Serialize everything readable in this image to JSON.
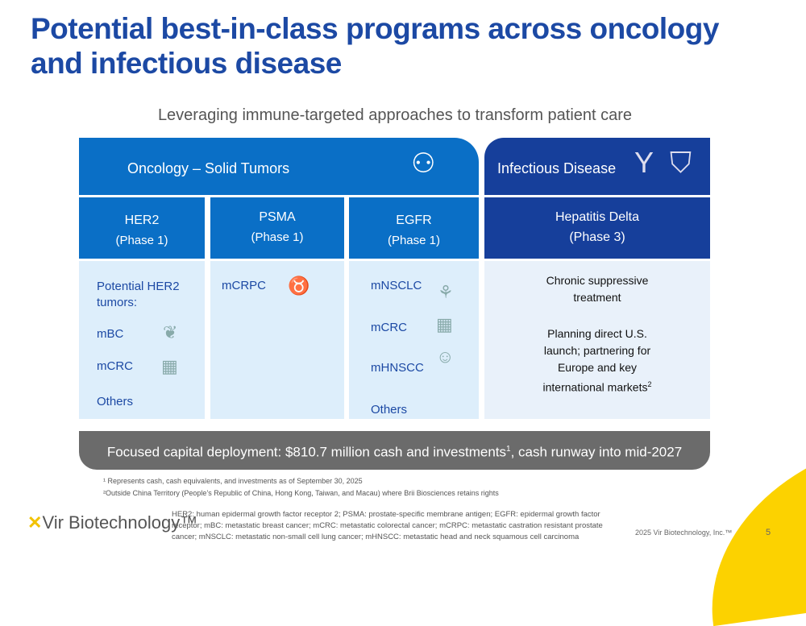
{
  "title": "Potential best-in-class programs across oncology and infectious disease",
  "subtitle": "Leveraging immune-targeted approaches to transform patient care",
  "oncology": {
    "header": "Oncology – Solid Tumors",
    "icon": "tumor-cells-icon",
    "programs": [
      {
        "name": "HER2",
        "phase": "(Phase 1)",
        "intro": "Potential HER2 tumors:",
        "indications": [
          "mBC",
          "mCRC",
          "Others"
        ]
      },
      {
        "name": "PSMA",
        "phase": "(Phase 1)",
        "indications": [
          "mCRPC"
        ]
      },
      {
        "name": "EGFR",
        "phase": "(Phase 1)",
        "indications": [
          "mNSCLC",
          "mCRC",
          "mHNSCC",
          "Others"
        ]
      }
    ]
  },
  "infectious": {
    "header": "Infectious Disease",
    "icons": [
      "antibody-icon",
      "virus-shield-icon"
    ],
    "program": {
      "name": "Hepatitis Delta",
      "phase": "(Phase 3)",
      "line1": "Chronic suppressive treatment",
      "line2": "Planning direct U.S. launch; partnering for Europe and key international markets",
      "sup": "2"
    }
  },
  "bar": {
    "text": "Focused capital deployment: $810.7 million cash and investments",
    "sup": "1",
    "tail": ", cash runway into mid-2027"
  },
  "footnotes": [
    "¹ Represents cash, cash equivalents, and investments as of September 30, 2025",
    "²Outside China Territory (People’s Republic of China, Hong Kong, Taiwan, and Macau) where Brii Biosciences retains rights"
  ],
  "abbreviations": "HER2: human epidermal growth factor receptor 2; PSMA: prostate-specific membrane antigen; EGFR: epidermal growth factor receptor; mBC: metastatic breast cancer; mCRC: metastatic colorectal cancer; mCRPC: metastatic castration resistant prostate cancer; mNSCLC: metastatic non-small cell lung cancer; mHNSCC: metastatic head and neck squamous cell carcinoma",
  "logo": "Vir Biotechnology™",
  "copyright": "2025 Vir Biotechnology, Inc.™",
  "page": "5",
  "colors": {
    "title": "#1c49a4",
    "oncology": "#0a6fc6",
    "infectious": "#163f9b",
    "accent": "#fcd200"
  }
}
